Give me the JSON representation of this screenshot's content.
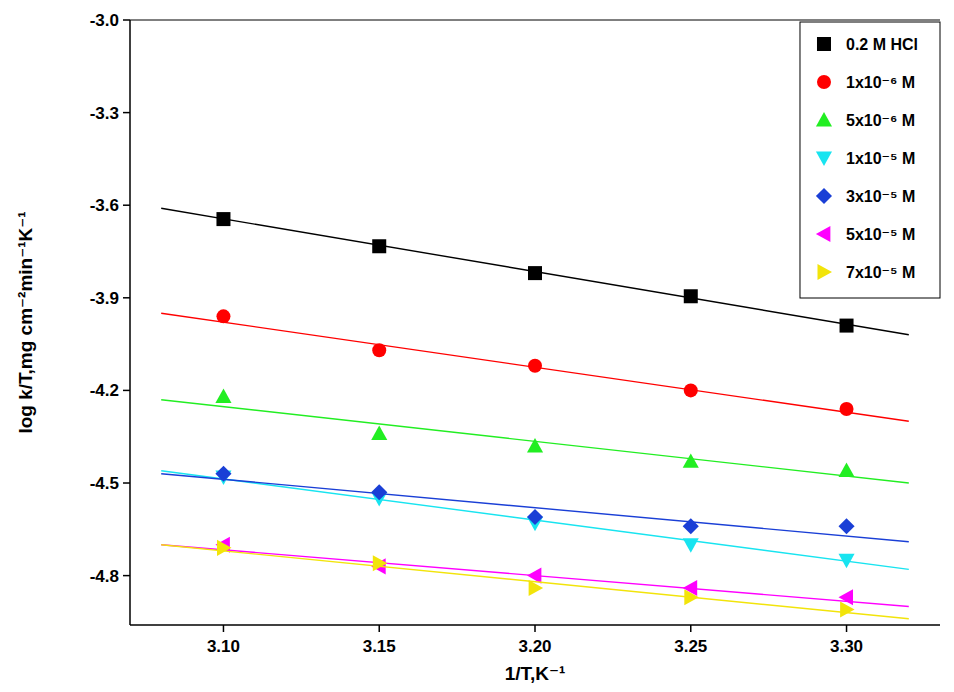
{
  "chart_data": {
    "type": "scatter",
    "x_label": "1/T,K⁻¹",
    "y_label": "log k/T,mg cm⁻²min⁻¹K⁻¹",
    "x": [
      3.1,
      3.15,
      3.2,
      3.25,
      3.3
    ],
    "fit_x": [
      3.08,
      3.32
    ],
    "xlim": [
      3.07,
      3.33
    ],
    "ylim": [
      -4.96,
      -3.0
    ],
    "xticks": [
      {
        "value": 3.1,
        "label": "3.10"
      },
      3.15,
      {
        "value": 3.2,
        "label": "3.20"
      },
      3.25,
      {
        "value": 3.3,
        "label": "3.30"
      }
    ],
    "yticks": [
      {
        "value": -3.0,
        "label": "-3.0"
      },
      -3.3,
      -3.6,
      -3.9,
      -4.2,
      -4.5,
      -4.8
    ],
    "grid": false,
    "legend": "top-right",
    "series": [
      {
        "name": "0.2 M HCl",
        "color": "#000000",
        "marker": "square",
        "line_style": "solid",
        "values": [
          -3.645,
          -3.733,
          -3.82,
          -3.895,
          -3.99
        ],
        "fit": [
          -3.61,
          -4.02
        ]
      },
      {
        "name": "1x10⁻⁶ M",
        "color": "#ff0000",
        "marker": "circle",
        "line_style": "solid",
        "values": [
          -3.96,
          -4.07,
          -4.12,
          -4.2,
          -4.26
        ],
        "fit": [
          -3.95,
          -4.3
        ]
      },
      {
        "name": "5x10⁻⁶ M",
        "color": "#22ee22",
        "marker": "triangle-up",
        "line_style": "solid",
        "values": [
          -4.22,
          -4.34,
          -4.38,
          -4.43,
          -4.46
        ],
        "fit": [
          -4.23,
          -4.5
        ]
      },
      {
        "name": "1x10⁻⁵ M",
        "color": "#18e4f0",
        "marker": "triangle-down",
        "line_style": "solid",
        "values": [
          -4.48,
          -4.55,
          -4.63,
          -4.7,
          -4.75
        ],
        "fit": [
          -4.46,
          -4.78
        ]
      },
      {
        "name": "3x10⁻⁵ M",
        "color": "#1a3fd6",
        "marker": "diamond",
        "line_style": "solid",
        "values": [
          -4.47,
          -4.53,
          -4.61,
          -4.64,
          -4.64
        ],
        "fit": [
          -4.47,
          -4.69
        ]
      },
      {
        "name": "5x10⁻⁵ M",
        "color": "#ff00ff",
        "marker": "triangle-left",
        "line_style": "solid",
        "values": [
          -4.7,
          -4.77,
          -4.8,
          -4.84,
          -4.87
        ],
        "fit": [
          -4.7,
          -4.9
        ]
      },
      {
        "name": "7x10⁻⁵ M",
        "color": "#f2e40a",
        "marker": "triangle-right",
        "line_style": "solid",
        "values": [
          -4.71,
          -4.76,
          -4.84,
          -4.87,
          -4.91
        ],
        "fit": [
          -4.7,
          -4.94
        ]
      }
    ]
  }
}
